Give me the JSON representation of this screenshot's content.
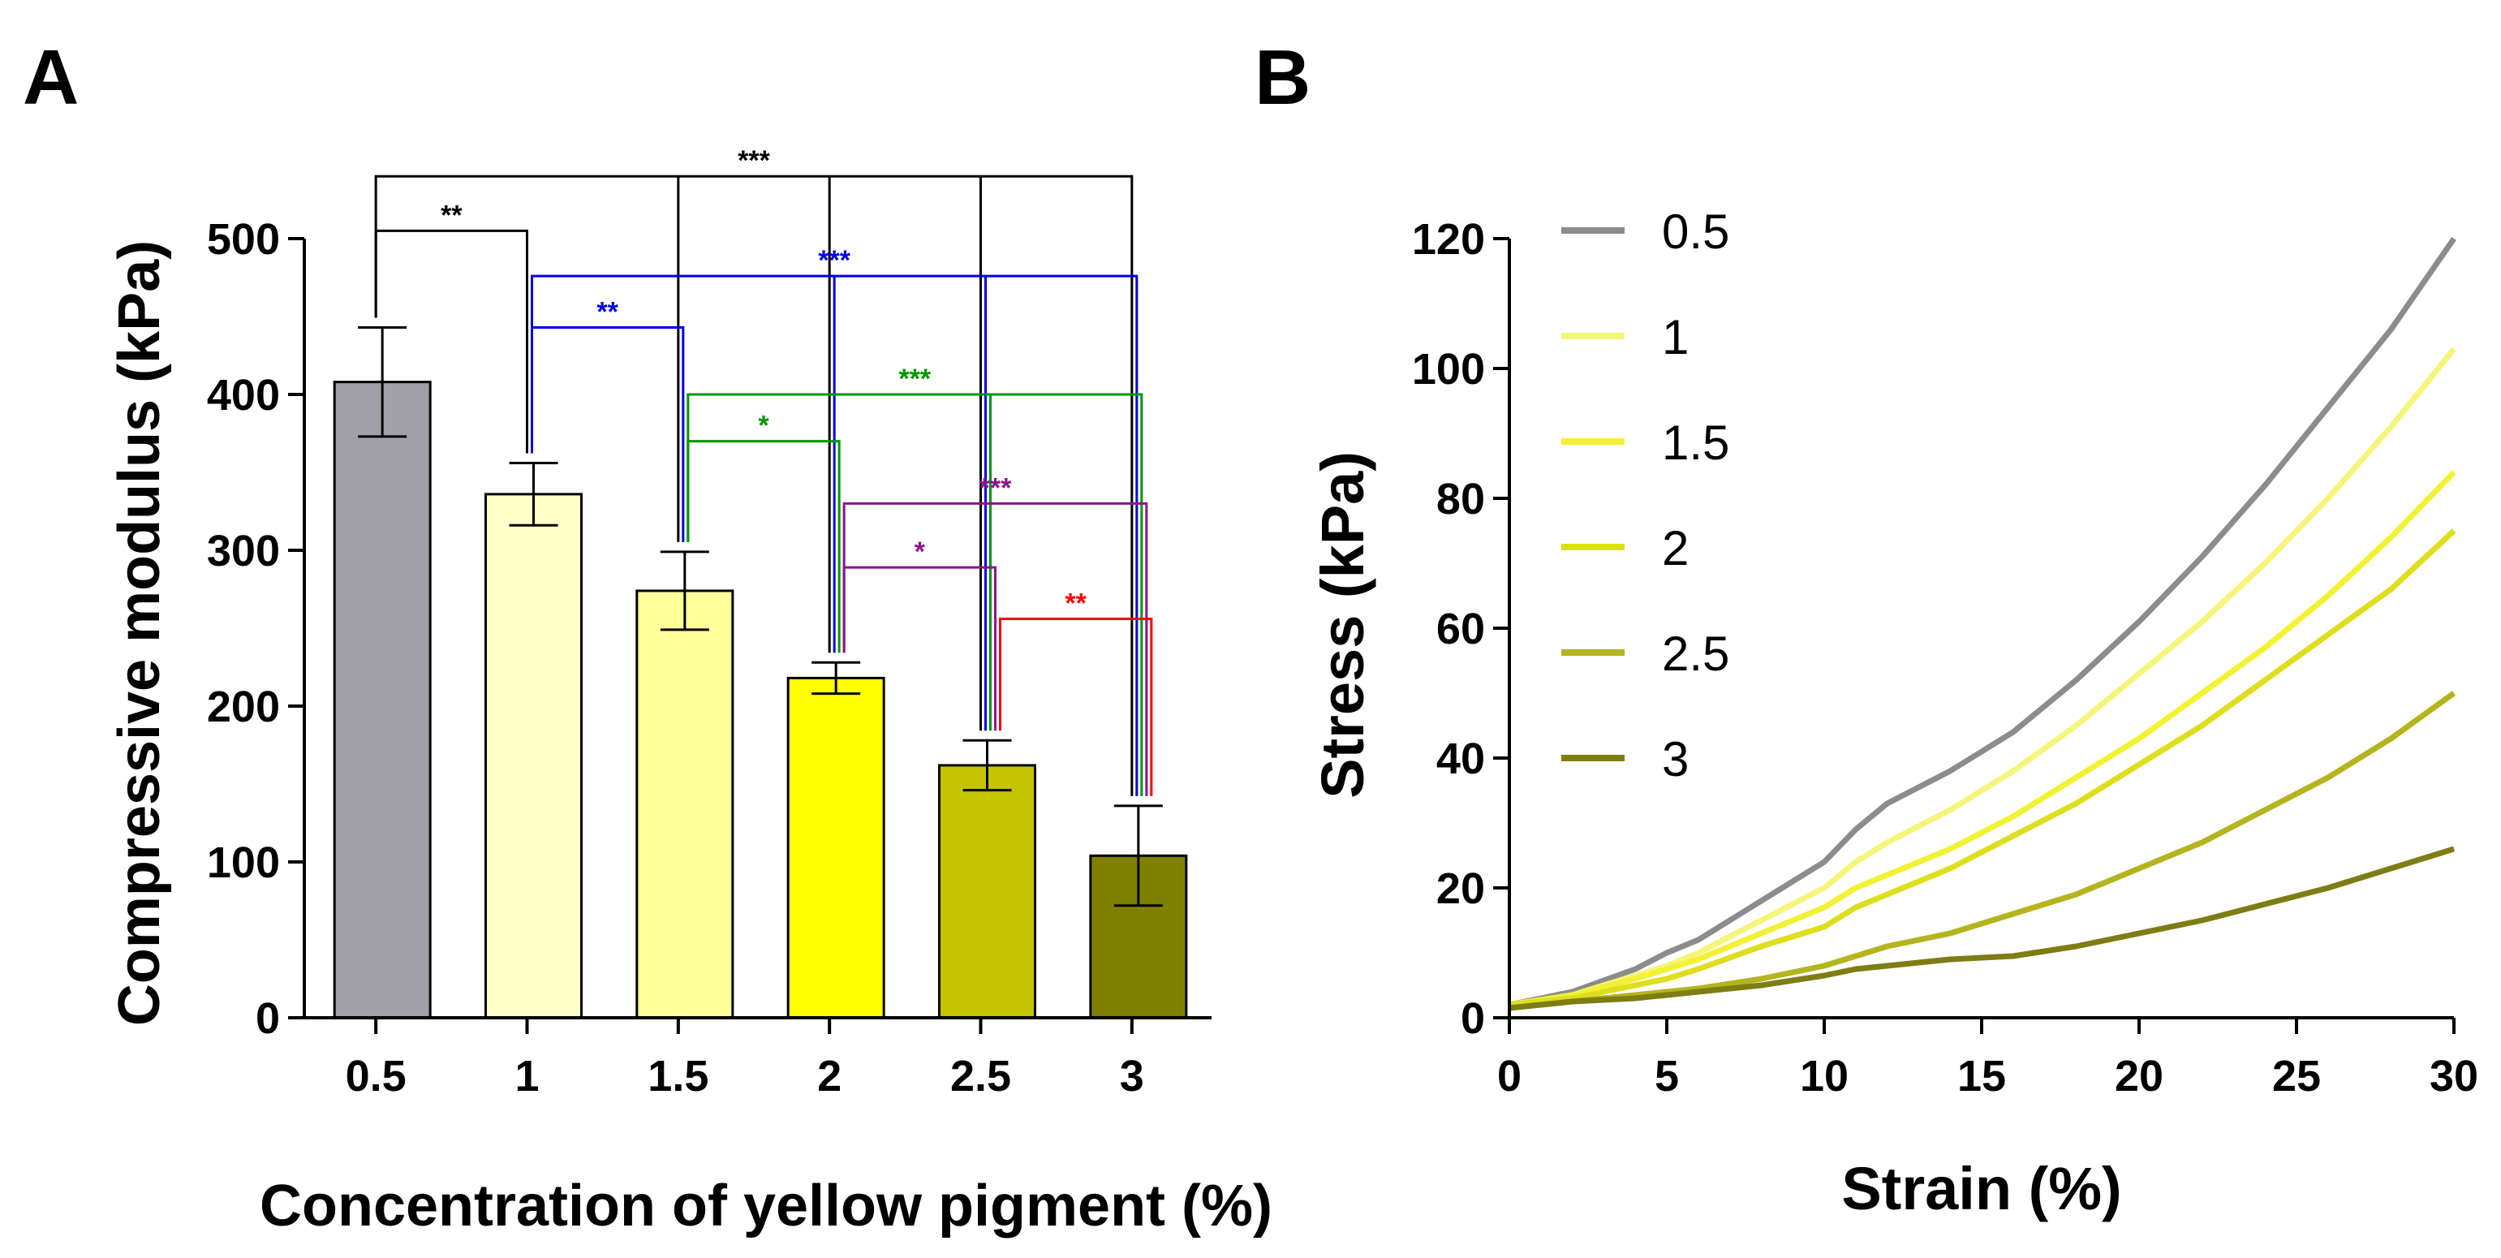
{
  "panels": {
    "a": {
      "letter": "A"
    },
    "b": {
      "letter": "B"
    }
  },
  "colors": {
    "bars": [
      "#a0a0a6",
      "#ffffc8",
      "#ffff99",
      "#ffff00",
      "#c4c400",
      "#808000"
    ],
    "lines": [
      "#8c8c8c",
      "#f5f57a",
      "#f2f232",
      "#dede1e",
      "#b4b41e",
      "#7d7d14"
    ],
    "sig": {
      "black": "#000000",
      "blue": "#0000e6",
      "green": "#009600",
      "purple": "#8c148c",
      "red": "#ff0000"
    }
  },
  "chart_data": [
    {
      "type": "bar",
      "title": "",
      "xlabel": "Concentration of yellow pigment (%)",
      "ylabel": "Compressive modulus (kPa)",
      "categories": [
        "0.5",
        "1",
        "1.5",
        "2",
        "2.5",
        "3"
      ],
      "values": [
        408,
        336,
        274,
        218,
        162,
        104
      ],
      "errors": [
        35,
        20,
        25,
        10,
        16,
        32
      ],
      "ylim": [
        0,
        500
      ],
      "yticks": [
        0,
        100,
        200,
        300,
        400,
        500
      ],
      "ytick_labels": [
        "0",
        "100",
        "200",
        "300",
        "400",
        "500"
      ],
      "significance": [
        {
          "from": 0,
          "to": 1,
          "label": "**",
          "color": "black",
          "level": 505
        },
        {
          "from": 0,
          "to": 5,
          "label": "***",
          "color": "black",
          "level": 540,
          "drops": [
            2,
            3,
            4
          ]
        },
        {
          "from": 1,
          "to": 2,
          "label": "**",
          "color": "blue",
          "level": 443
        },
        {
          "from": 1,
          "to": 5,
          "label": "***",
          "color": "blue",
          "level": 476,
          "drops": [
            3,
            4
          ]
        },
        {
          "from": 2,
          "to": 3,
          "label": "*",
          "color": "green",
          "level": 370
        },
        {
          "from": 2,
          "to": 5,
          "label": "***",
          "color": "green",
          "level": 400,
          "drops": [
            4
          ]
        },
        {
          "from": 3,
          "to": 4,
          "label": "*",
          "color": "purple",
          "level": 289
        },
        {
          "from": 3,
          "to": 5,
          "label": "***",
          "color": "purple",
          "level": 330
        },
        {
          "from": 4,
          "to": 5,
          "label": "**",
          "color": "red",
          "level": 256
        }
      ]
    },
    {
      "type": "line",
      "title": "",
      "xlabel": "Strain (%)",
      "ylabel": "Stress  (kPa)",
      "xlim": [
        0,
        30
      ],
      "ylim": [
        0,
        120
      ],
      "xticks": [
        0,
        5,
        10,
        15,
        20,
        25,
        30
      ],
      "xtick_labels": [
        "0",
        "5",
        "10",
        "15",
        "20",
        "25",
        "30"
      ],
      "yticks": [
        0,
        20,
        40,
        60,
        80,
        100,
        120
      ],
      "ytick_labels": [
        "0",
        "20",
        "40",
        "60",
        "80",
        "100",
        "120"
      ],
      "legend_position": "top-left",
      "x": [
        0,
        2,
        4,
        5,
        6,
        8,
        10,
        11,
        12,
        14,
        16,
        18,
        20,
        22,
        24,
        26,
        28,
        30
      ],
      "series": [
        {
          "name": "0.5",
          "values": [
            2,
            4,
            7.5,
            10,
            12,
            18,
            24,
            29,
            33,
            38,
            44,
            52,
            61,
            71,
            82,
            94,
            106,
            120
          ]
        },
        {
          "name": "1",
          "values": [
            2,
            3.5,
            6.5,
            8,
            10,
            15,
            20,
            24,
            27,
            32,
            38,
            45,
            53,
            61,
            70,
            80,
            91,
            103
          ]
        },
        {
          "name": "1.5",
          "values": [
            2,
            3.5,
            6,
            7.5,
            9,
            13,
            17,
            20,
            22,
            26,
            31,
            37,
            43,
            50,
            57,
            65,
            74,
            84
          ]
        },
        {
          "name": "2",
          "values": [
            2,
            3,
            5,
            6,
            7.5,
            11,
            14,
            17,
            19,
            23,
            28,
            33,
            39,
            45,
            52,
            59,
            66,
            75
          ]
        },
        {
          "name": "2.5",
          "values": [
            1.5,
            2.5,
            3.5,
            4,
            4.5,
            6,
            8,
            9.5,
            11,
            13,
            16,
            19,
            23,
            27,
            32,
            37,
            43,
            50
          ]
        },
        {
          "name": "3",
          "values": [
            1.5,
            2.5,
            3,
            3.5,
            4,
            5,
            6.5,
            7.5,
            8,
            9,
            9.5,
            11,
            13,
            15,
            17.5,
            20,
            23,
            26
          ]
        }
      ]
    }
  ]
}
